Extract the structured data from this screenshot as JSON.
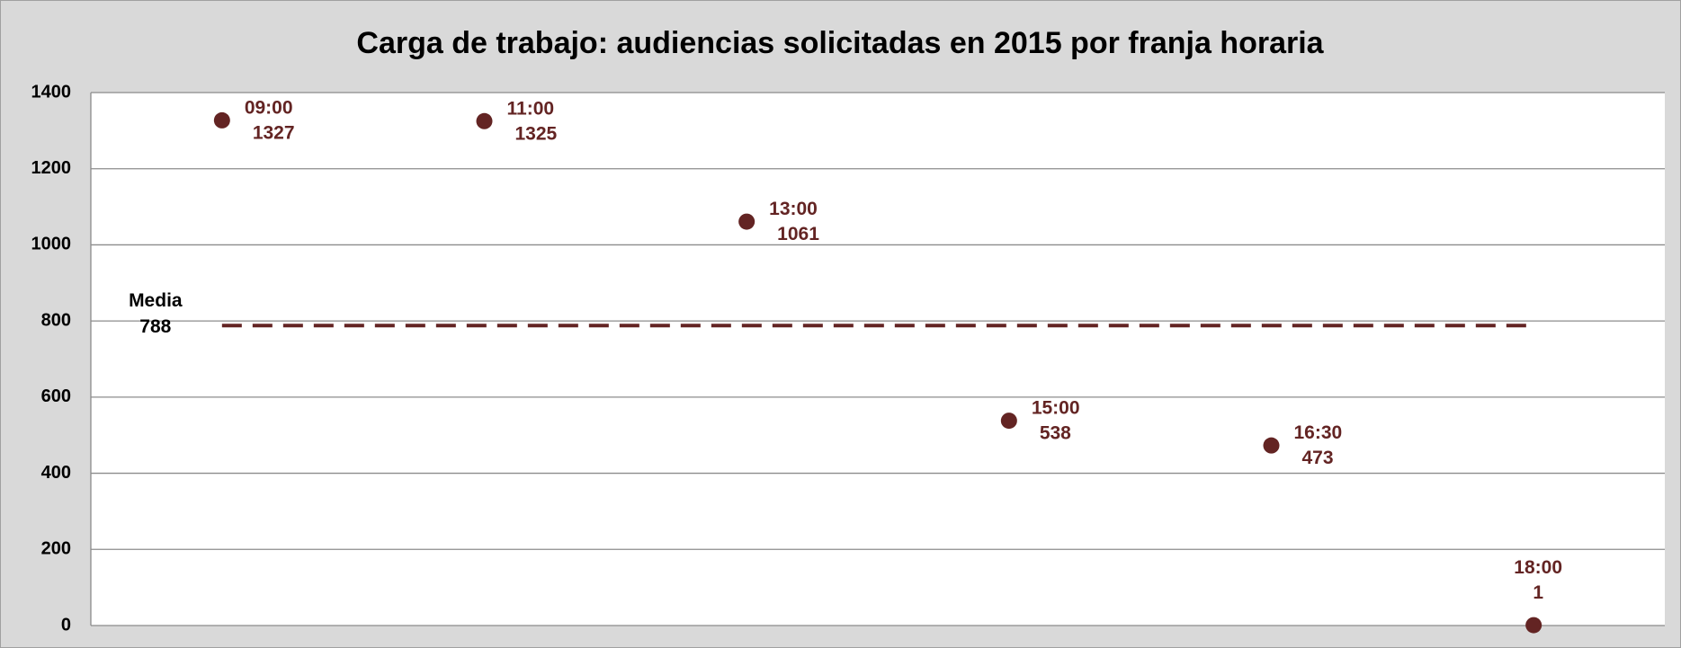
{
  "chart_data": {
    "type": "scatter",
    "title": "Carga de trabajo: audiencias solicitadas en 2015 por franja horaria",
    "categories": [
      "09:00",
      "11:00",
      "13:00",
      "15:00",
      "16:30",
      "18:00"
    ],
    "values": [
      1327,
      1325,
      1061,
      538,
      473,
      1
    ],
    "color": "#632423",
    "mean": {
      "label": "Media",
      "value": 788
    },
    "ylim": [
      0,
      1400
    ],
    "yticks": [
      0,
      200,
      400,
      600,
      800,
      1000,
      1200,
      1400
    ],
    "grid": true
  }
}
